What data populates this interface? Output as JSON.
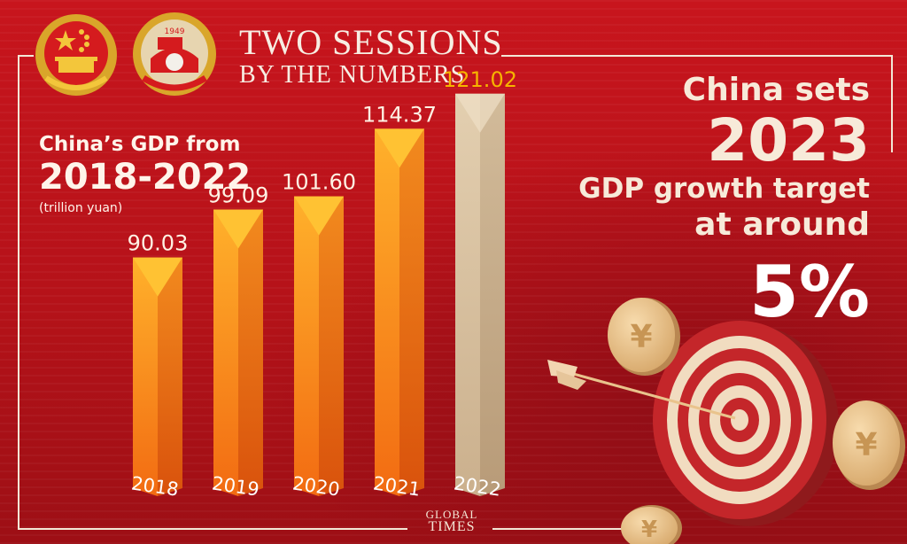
{
  "header": {
    "title_line1": "TWO SESSIONS",
    "title_line2": "BY THE NUMBERS",
    "emblem2_year": "1949"
  },
  "chart_title": {
    "line1": "China’s GDP from",
    "line2": "2018-2022",
    "unit": "(trillion yuan)"
  },
  "chart_data": {
    "type": "bar",
    "title": "China’s GDP from 2018-2022",
    "ylabel": "(trillion yuan)",
    "categories": [
      "2018",
      "2019",
      "2020",
      "2021",
      "2022"
    ],
    "values": [
      90.03,
      99.09,
      101.6,
      114.37,
      121.02
    ],
    "value_labels": [
      "90.03",
      "99.09",
      "101.60",
      "114.37",
      "121.02"
    ],
    "ylim": [
      0,
      130
    ],
    "grid": false,
    "highlight_index": 4
  },
  "target": {
    "line1": "China sets",
    "line2": "2023",
    "line3": "GDP growth target",
    "line4": "at around",
    "line5": "5%"
  },
  "logo": {
    "line1": "GLOBAL",
    "line2": "TIMES"
  },
  "colors": {
    "background": "#b81219",
    "bar_orange": "#f57a1a",
    "bar_highlight": "#d8c3a4",
    "label_gold": "#f6b400",
    "text_cream": "#f7ead9"
  },
  "icons": [
    "national-emblem-icon",
    "cppcc-emblem-icon",
    "dartboard-icon",
    "arrow-icon",
    "yuan-coin-icon"
  ]
}
